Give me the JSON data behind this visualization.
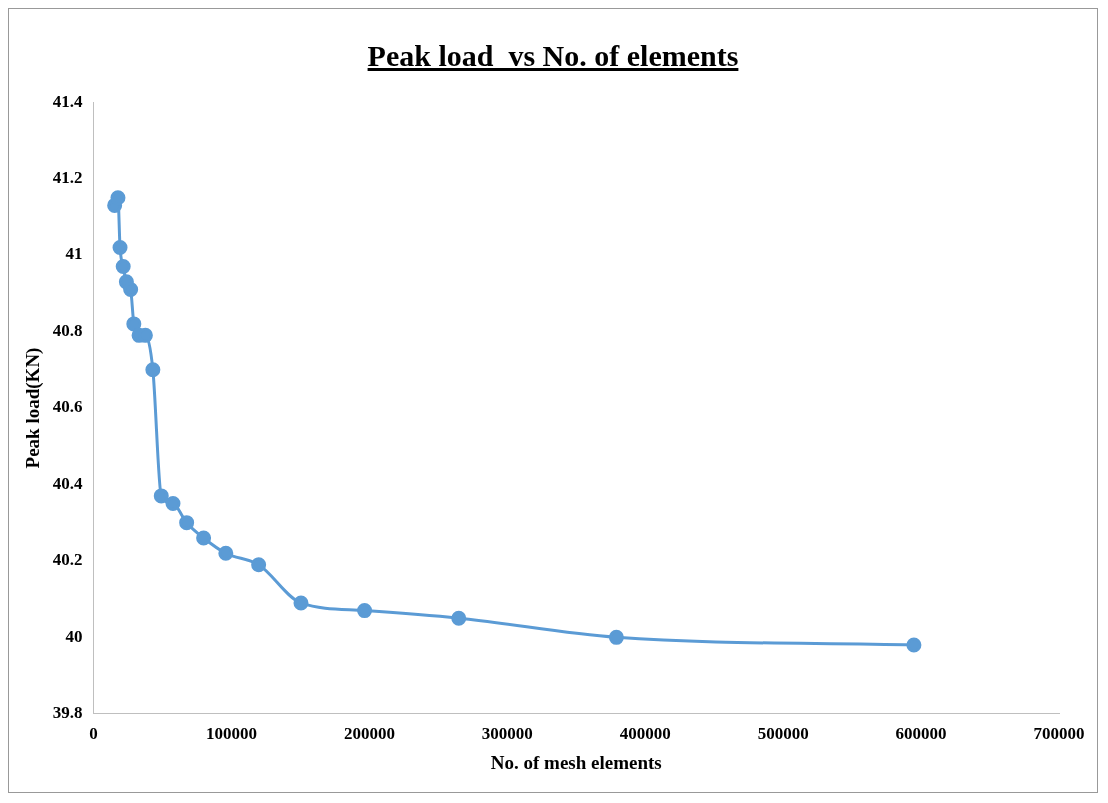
{
  "chart_data": {
    "type": "line",
    "title": "Peak load  vs No. of elements",
    "xlabel": "No. of mesh elements",
    "ylabel": "Peak load(KN)",
    "x": [
      15300,
      17700,
      19200,
      21500,
      23800,
      26900,
      29200,
      33000,
      37600,
      43000,
      49100,
      57600,
      67500,
      79800,
      95900,
      119700,
      150400,
      196500,
      264800,
      379100,
      594800
    ],
    "series": [
      {
        "color": "#5b9bd5",
        "values": [
          41.13,
          41.15,
          41.02,
          40.97,
          40.93,
          40.91,
          40.82,
          40.79,
          40.79,
          40.7,
          40.37,
          40.35,
          40.3,
          40.26,
          40.22,
          40.19,
          40.09,
          40.07,
          40.05,
          40.0,
          39.98
        ]
      }
    ],
    "xlim": [
      0,
      700000
    ],
    "xticks": [
      0,
      100000,
      200000,
      300000,
      400000,
      500000,
      600000,
      700000
    ],
    "ylim": [
      39.8,
      41.4
    ],
    "yticks": [
      39.8,
      40,
      40.2,
      40.4,
      40.6,
      40.8,
      41,
      41.2,
      41.4
    ],
    "grid": false,
    "legend": false,
    "marker": "circle",
    "line_style": "solid"
  }
}
